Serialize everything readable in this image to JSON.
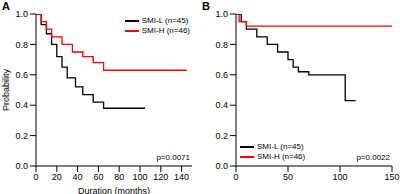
{
  "chart_data": [
    {
      "type": "line",
      "title": "A",
      "x_label": "Duration (months)",
      "y_label": "Probability",
      "annotation": "p=0.0071",
      "legend": "upper right",
      "xlim": [
        0,
        150
      ],
      "xticks": [
        0,
        20,
        40,
        60,
        80,
        100,
        120,
        140
      ],
      "ylim": [
        0,
        1.0
      ],
      "yticks": [
        {
          "value": 0,
          "label": "0.0"
        },
        {
          "value": 0.2,
          "label": "0.2"
        },
        {
          "value": 0.4,
          "label": "0.4"
        },
        {
          "value": 0.6,
          "label": "0.6"
        },
        {
          "value": 0.8,
          "label": "0.8"
        },
        {
          "value": 1.0,
          "label": "1.0"
        }
      ],
      "series": [
        {
          "name": "SMI-L (n=45)",
          "color": "#000000",
          "line_style": "step",
          "x": [
            0,
            5,
            10,
            15,
            20,
            25,
            30,
            38,
            45,
            55,
            65,
            105
          ],
          "values": [
            1.0,
            0.93,
            0.87,
            0.8,
            0.72,
            0.65,
            0.58,
            0.52,
            0.47,
            0.42,
            0.38,
            0.38
          ]
        },
        {
          "name": "SMI-H (n=46)",
          "color": "#ff0000",
          "line_style": "step",
          "x": [
            0,
            5,
            10,
            15,
            25,
            35,
            45,
            55,
            65,
            145
          ],
          "values": [
            1.0,
            0.95,
            0.9,
            0.85,
            0.8,
            0.75,
            0.72,
            0.68,
            0.63,
            0.63
          ]
        }
      ]
    },
    {
      "type": "line",
      "title": "B",
      "annotation": "p=0.0022",
      "legend": "lower left",
      "xlim": [
        0,
        150
      ],
      "xticks": [
        0,
        50,
        100,
        150
      ],
      "ylim": [
        0,
        1.0
      ],
      "yticks": [
        {
          "value": 0,
          "label": "0.0"
        },
        {
          "value": 0.2,
          "label": "0.2"
        },
        {
          "value": 0.4,
          "label": "0.4"
        },
        {
          "value": 0.6,
          "label": "0.6"
        },
        {
          "value": 0.8,
          "label": "0.8"
        },
        {
          "value": 1.0,
          "label": "1.0"
        }
      ],
      "series": [
        {
          "name": "SMI-L (n=45)",
          "color": "#000000",
          "line_style": "step",
          "x": [
            0,
            5,
            10,
            20,
            30,
            40,
            50,
            55,
            60,
            70,
            105,
            115
          ],
          "values": [
            1.0,
            0.95,
            0.9,
            0.85,
            0.8,
            0.75,
            0.7,
            0.65,
            0.62,
            0.6,
            0.43,
            0.43
          ]
        },
        {
          "name": "SMI-H (n=46)",
          "color": "#ff0000",
          "line_style": "step",
          "x": [
            0,
            3,
            10,
            150
          ],
          "values": [
            1.0,
            0.95,
            0.92,
            0.92
          ]
        }
      ]
    }
  ]
}
